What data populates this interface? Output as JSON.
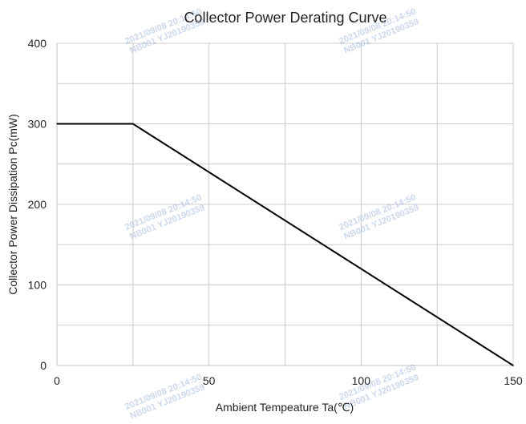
{
  "chart_data": {
    "type": "line",
    "title": "Collector Power Derating Curve",
    "xlabel": "Ambient Tempeature Ta(℃)",
    "ylabel": "Collector Power Dissipation   Pc(mW)",
    "xlim": [
      0,
      150
    ],
    "ylim": [
      0,
      400
    ],
    "x_ticks": [
      0,
      50,
      100,
      150
    ],
    "y_ticks": [
      0,
      100,
      200,
      300,
      400
    ],
    "x_minor_grid_step": 25,
    "y_minor_grid_step": 50,
    "grid": true,
    "legend": "none",
    "series": [
      {
        "x": [
          0,
          25,
          150
        ],
        "y": [
          300,
          300,
          0
        ],
        "color": "#000000"
      }
    ]
  },
  "watermarks": [
    {
      "line1": "2021/09/08 20:14:50",
      "line2": "NB001 YJ20190359"
    },
    {
      "line1": "2021/09/08 20:14:50",
      "line2": "NB001 YJ20190359"
    },
    {
      "line1": "2021/09/08 20:14:50",
      "line2": "NB001 YJ20190359"
    },
    {
      "line1": "2021/09/08 20:14:50",
      "line2": "NB001 YJ20190359"
    },
    {
      "line1": "2021/09/08 20:14:50",
      "line2": "NB001 YJ20190359"
    },
    {
      "line1": "2021/09/08 20:14:50",
      "line2": "NB001 YJ20190359"
    }
  ],
  "colors": {
    "grid": "#cccccc",
    "axis": "#bfbfbf",
    "line": "#000000",
    "text": "#222222"
  }
}
